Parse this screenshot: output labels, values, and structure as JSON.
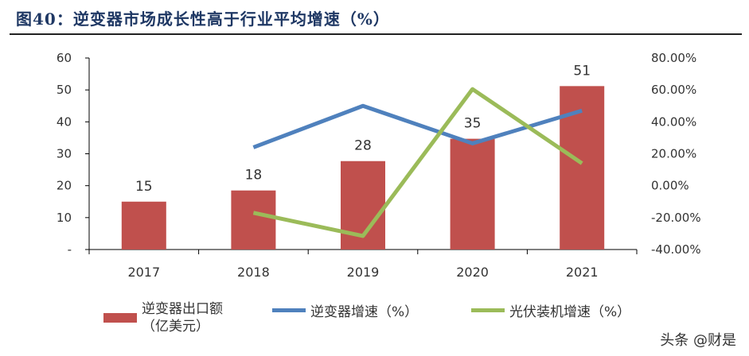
{
  "title": "图40：逆变器市场成长性高于行业平均增速（%）",
  "watermark": "头条 @财是",
  "colors": {
    "bar": "#c0504d",
    "inverter_growth": "#4f81bd",
    "pv_growth": "#9bbb59"
  },
  "chart_data": {
    "type": "bar+line",
    "title": "图40：逆变器市场成长性高于行业平均增速（%）",
    "categories": [
      "2017",
      "2018",
      "2019",
      "2020",
      "2021"
    ],
    "left_axis": {
      "range": [
        0,
        60
      ],
      "ticks": [
        "-",
        "10",
        "20",
        "30",
        "40",
        "50",
        "60"
      ]
    },
    "right_axis": {
      "range": [
        -40,
        80
      ],
      "ticks": [
        "-40.00%",
        "-20.00%",
        "0.00%",
        "20.00%",
        "40.00%",
        "60.00%",
        "80.00%"
      ]
    },
    "series": [
      {
        "name": "逆变器出口额（亿美元）",
        "type": "bar",
        "axis": "left",
        "values": [
          15,
          18.5,
          27.7,
          34.7,
          51.2
        ],
        "labels": [
          "15",
          "18",
          "28",
          "35",
          "51"
        ]
      },
      {
        "name": "逆变器增速（%）",
        "type": "line",
        "axis": "right",
        "values": [
          null,
          24,
          50,
          26.5,
          47
        ]
      },
      {
        "name": "光伏装机增速（%）",
        "type": "line",
        "axis": "right",
        "values": [
          null,
          -17,
          -31.5,
          60.5,
          14
        ]
      }
    ],
    "legend_position": "bottom",
    "grid": false
  }
}
